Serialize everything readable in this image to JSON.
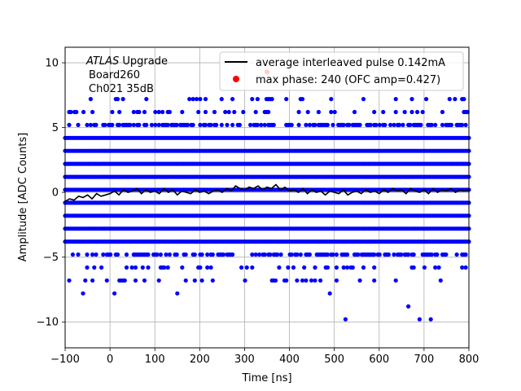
{
  "chart_data": {
    "type": "scatter",
    "xlabel": "Time [ns]",
    "ylabel": "Amplitude [ADC Counts]",
    "xlim": [
      -100,
      800
    ],
    "ylim": [
      -12,
      11.2
    ],
    "xticks": [
      -100,
      0,
      100,
      200,
      300,
      400,
      500,
      600,
      700,
      800
    ],
    "yticks": [
      -10,
      -5,
      0,
      5,
      10
    ],
    "grid": true,
    "legend_position": "top-right",
    "annotation": {
      "italic": "ATLAS",
      "rest": " Upgrade",
      "line2": "Board260",
      "line3": "Ch021 35dB"
    },
    "series": [
      {
        "name": "average interleaved pulse 0.142mA",
        "kind": "line",
        "color": "#000000",
        "x": [
          -100,
          -90,
          -80,
          -70,
          -60,
          -50,
          -40,
          -30,
          -20,
          -10,
          0,
          10,
          20,
          30,
          40,
          50,
          60,
          70,
          80,
          90,
          100,
          110,
          120,
          130,
          140,
          150,
          160,
          170,
          180,
          190,
          200,
          210,
          220,
          230,
          240,
          250,
          260,
          270,
          280,
          290,
          300,
          310,
          320,
          330,
          340,
          350,
          360,
          370,
          380,
          390,
          400,
          410,
          420,
          430,
          440,
          450,
          460,
          470,
          480,
          490,
          500,
          510,
          520,
          530,
          540,
          550,
          560,
          570,
          580,
          590,
          600,
          610,
          620,
          630,
          640,
          650,
          660,
          670,
          680,
          690,
          700,
          710,
          720,
          730,
          740,
          750,
          760,
          770,
          780,
          790,
          800
        ],
        "y": [
          -0.7,
          -0.5,
          -0.6,
          -0.3,
          -0.4,
          -0.2,
          -0.5,
          -0.1,
          -0.3,
          -0.2,
          -0.1,
          0.1,
          -0.2,
          0.2,
          0.0,
          0.1,
          0.3,
          -0.1,
          0.2,
          0.0,
          0.1,
          -0.1,
          0.3,
          0.0,
          0.2,
          -0.2,
          0.1,
          0.0,
          -0.1,
          0.2,
          0.0,
          0.1,
          -0.1,
          0.1,
          0.2,
          0.0,
          0.3,
          0.1,
          0.5,
          0.3,
          0.2,
          0.4,
          0.3,
          0.5,
          0.2,
          0.4,
          0.3,
          0.6,
          0.2,
          0.4,
          0.1,
          0.2,
          0.0,
          0.3,
          -0.1,
          0.2,
          0.0,
          0.1,
          -0.2,
          0.1,
          0.0,
          -0.1,
          0.2,
          -0.2,
          0.0,
          0.1,
          -0.1,
          0.2,
          0.0,
          0.1,
          -0.1,
          0.2,
          0.0,
          0.3,
          0.1,
          0.2,
          -0.1,
          0.3,
          0.1,
          0.0,
          0.2,
          -0.1,
          0.3,
          0.0,
          0.2,
          0.1,
          0.3,
          0.0,
          0.2,
          0.1,
          0.2
        ]
      },
      {
        "name": "max phase: 240 (OFC amp=0.427)",
        "kind": "scatter",
        "color": "#ff0000",
        "x": [
          350
        ],
        "y": [
          9.3
        ]
      },
      {
        "kind": "scatter-bands",
        "color": "#0000ff",
        "dense_levels": [
          4.2,
          3.2,
          2.2,
          1.2,
          0.2,
          -0.8,
          -1.8,
          -2.8,
          -3.8
        ],
        "medium_levels": [
          5.2,
          -4.8
        ],
        "sparse_levels": [
          6.2,
          7.2,
          -5.8,
          -6.8
        ],
        "outliers_x": [
          -60,
          10,
          150,
          490,
          525,
          665,
          690,
          715
        ],
        "outliers_y": [
          -7.8,
          -7.8,
          -7.8,
          -7.8,
          -9.8,
          -8.8,
          -9.8,
          -9.8
        ]
      }
    ]
  }
}
